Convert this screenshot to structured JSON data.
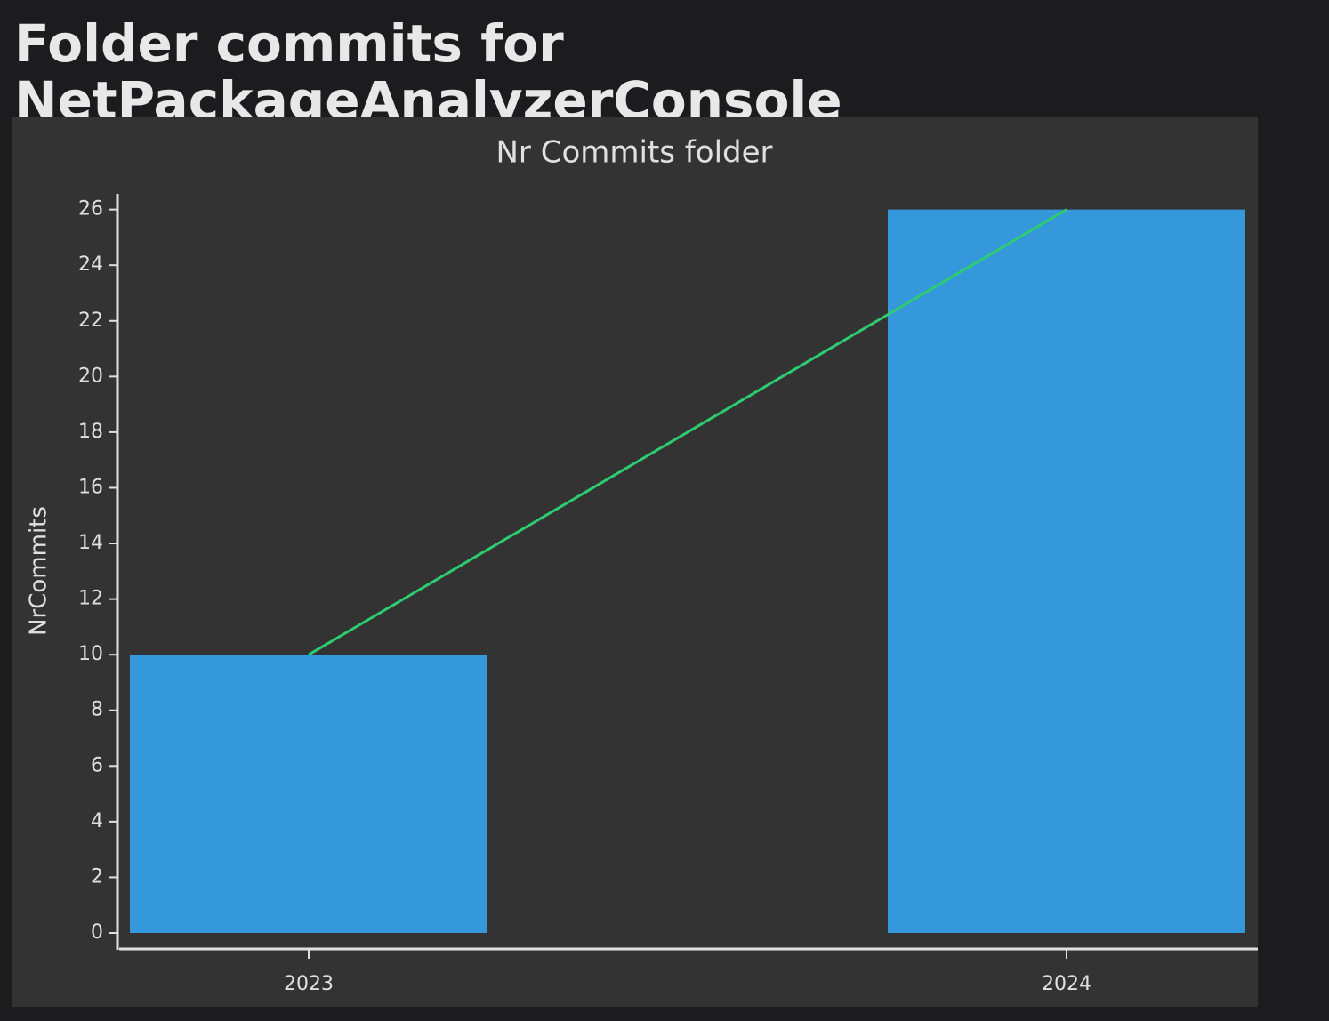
{
  "header": {
    "title": "Folder commits for NetPackageAnalyzerConsole"
  },
  "chart_data": {
    "type": "bar",
    "title": "Nr Commits folder",
    "y_label": "NrCommits",
    "categories": [
      "2023",
      "2024"
    ],
    "values": [
      10,
      26
    ],
    "color": "#3498db",
    "line_color": "#2ecc71",
    "ylim": [
      0,
      26.5
    ],
    "yticks": [
      0,
      2,
      4,
      6,
      8,
      10,
      12,
      14,
      16,
      18,
      20,
      22,
      24,
      26
    ]
  }
}
